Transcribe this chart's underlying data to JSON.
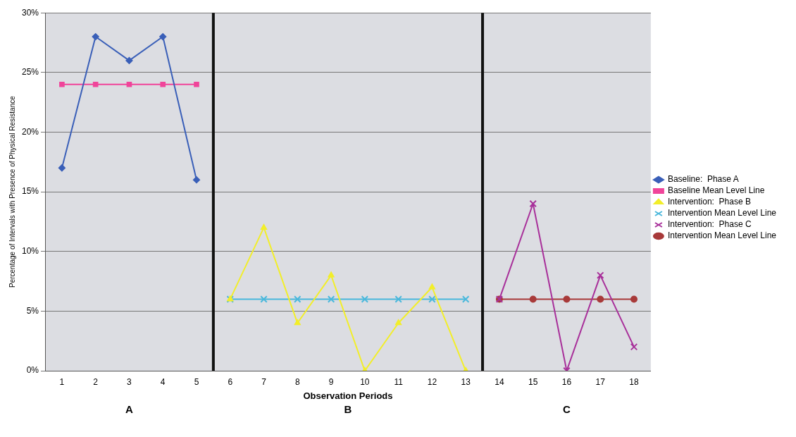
{
  "chart_data": {
    "type": "line",
    "xlabel": "Observation Periods",
    "ylabel": "Percentage of Intervals with Presence of Physical Resistance",
    "xlim": [
      0.5,
      18.5
    ],
    "xticks": [
      1,
      2,
      3,
      4,
      5,
      6,
      7,
      8,
      9,
      10,
      11,
      12,
      13,
      14,
      15,
      16,
      17,
      18
    ],
    "ylim": [
      0,
      30
    ],
    "yticks": [
      {
        "value": 0,
        "label": "0%"
      },
      {
        "value": 5,
        "label": "5%"
      },
      {
        "value": 10,
        "label": "10%"
      },
      {
        "value": 15,
        "label": "15%"
      },
      {
        "value": 20,
        "label": "20%"
      },
      {
        "value": 25,
        "label": "25%"
      },
      {
        "value": 30,
        "label": "30%"
      }
    ],
    "grid": "y",
    "legend": "right",
    "line_style": "solid",
    "series": [
      {
        "name": "Baseline:  Phase A",
        "color": "#3a5fb8",
        "marker": "diamond",
        "x": [
          1,
          2,
          3,
          4,
          5
        ],
        "values": [
          17,
          28,
          26,
          28,
          16
        ]
      },
      {
        "name": "Baseline Mean Level Line",
        "color": "#f0449a",
        "marker": "square",
        "x": [
          1,
          2,
          3,
          4,
          5
        ],
        "values": [
          24,
          24,
          24,
          24,
          24
        ]
      },
      {
        "name": "Intervention:  Phase B",
        "color": "#f2ee2a",
        "marker": "triangle",
        "x": [
          6,
          7,
          8,
          9,
          10,
          11,
          12,
          13
        ],
        "values": [
          6,
          12,
          4,
          8,
          0,
          4,
          7,
          0
        ]
      },
      {
        "name": "Intervention Mean Level Line",
        "color": "#4ab8dc",
        "marker": "cross",
        "x": [
          6,
          7,
          8,
          9,
          10,
          11,
          12,
          13
        ],
        "values": [
          6,
          6,
          6,
          6,
          6,
          6,
          6,
          6
        ]
      },
      {
        "name": "Intervention:  Phase C",
        "color": "#a8309a",
        "marker": "cross",
        "x": [
          14,
          15,
          16,
          17,
          18
        ],
        "values": [
          6,
          14,
          0,
          8,
          2
        ]
      },
      {
        "name": "Intervention Mean Level Line",
        "color": "#a83a3a",
        "marker": "circle",
        "x": [
          14,
          15,
          16,
          17,
          18
        ],
        "values": [
          6,
          6,
          6,
          6,
          6
        ]
      }
    ],
    "ref_lines": [
      {
        "axis": "x",
        "value": 5.5,
        "color": "#111111"
      },
      {
        "axis": "x",
        "value": 13.5,
        "color": "#111111"
      }
    ],
    "annotations": [
      "A",
      "B",
      "C"
    ]
  }
}
